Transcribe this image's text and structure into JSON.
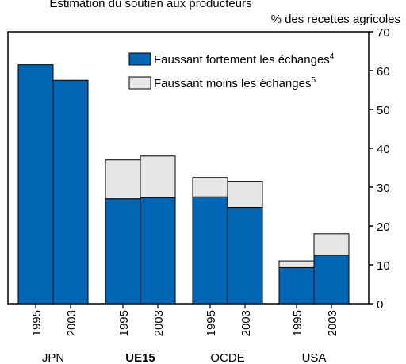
{
  "chart_data": {
    "type": "stacked-bar",
    "title": "Estimation du soutien aux producteurs",
    "y_label": "% des recettes agricoles",
    "categories": [
      "1995",
      "2003",
      "1995",
      "2003",
      "1995",
      "2003",
      "1995",
      "2003"
    ],
    "groups": [
      {
        "label": "JPN",
        "bold": false
      },
      {
        "label": "UE15",
        "bold": true
      },
      {
        "label": "OCDE",
        "bold": false
      },
      {
        "label": "USA",
        "bold": false
      }
    ],
    "series": [
      {
        "name": "Faussant fortement les échanges",
        "footnote": "4",
        "color": "#0066b3",
        "values": [
          61.5,
          57.5,
          27,
          27.3,
          27.5,
          24.8,
          9.3,
          12.5
        ]
      },
      {
        "name": "Faussant moins les échanges",
        "footnote": "5",
        "color": "#e6e6e6",
        "values": [
          null,
          null,
          10,
          10.7,
          5,
          6.7,
          1.7,
          5.5
        ]
      }
    ],
    "ylim": [
      0,
      70
    ],
    "yticks": [
      0,
      10,
      20,
      30,
      40,
      50,
      60,
      70
    ],
    "y_axis_side": "right"
  }
}
